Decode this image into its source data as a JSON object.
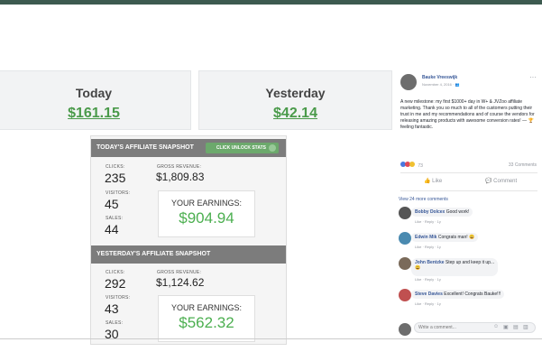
{
  "cards": [
    {
      "title": "Today",
      "amount": "$161.15"
    },
    {
      "title": "Yesterday",
      "amount": "$42.14"
    }
  ],
  "today": {
    "header": "TODAY'S AFFILIATE SNAPSHOT",
    "button": "CLICK UNLOCK STATS",
    "clicks_label": "CLICKS:",
    "clicks": "235",
    "visitors_label": "VISITORS:",
    "visitors": "45",
    "sales_label": "SALES:",
    "sales": "44",
    "gross_label": "GROSS REVENUE:",
    "gross": "$1,809.83",
    "earnings_label": "YOUR EARNINGS:",
    "earnings": "$904.94"
  },
  "yesterday": {
    "header": "YESTERDAY'S AFFILIATE SNAPSHOT",
    "clicks_label": "CLICKS:",
    "clicks": "292",
    "visitors_label": "VISITORS:",
    "visitors": "43",
    "sales_label": "SALES:",
    "sales": "30",
    "gross_label": "GROSS REVENUE:",
    "gross": "$1,124.62",
    "earnings_label": "YOUR EARNINGS:",
    "earnings": "$562.32"
  },
  "fb": {
    "author": "Bauke Vreeswijk",
    "date": "November 4, 2016 · ",
    "more": "···",
    "post_text": "A new milestone: my first $1000+ day in W+ & JVZoo affiliate marketing. Thank you so much to all of the customers putting their trust in me and my recommendations and of course the vendors for releasing amazing products with awesome conversion rates! — 🏆 feeling fantastic.",
    "reaction_count": "73",
    "comments_count": "33 Comments",
    "like_label": "Like",
    "comment_label": "Comment",
    "view_more": "View 24 more comments",
    "comments": [
      {
        "name": "Bobby Dolcex",
        "text": "Good work!",
        "meta": "Like · Reply · 1y"
      },
      {
        "name": "Edwin Mik",
        "text": "Congrats man! 😀",
        "meta": "Like · Reply · 1y"
      },
      {
        "name": "John Bentzke",
        "text": "Step up and keep it up...",
        "extra": "😀",
        "meta": "Like · Reply · 1y"
      },
      {
        "name": "Steve Davies",
        "text": "Excellent! Congrats Bauke!!!",
        "meta": "Like · Reply · 1y"
      }
    ],
    "write_placeholder": "Write a comment..."
  },
  "colors": {
    "accent_green": "#4caf50",
    "fb_blue": "#385898",
    "snapshot_bar": "#7c7c7c",
    "top_bar": "#3d5a50"
  }
}
